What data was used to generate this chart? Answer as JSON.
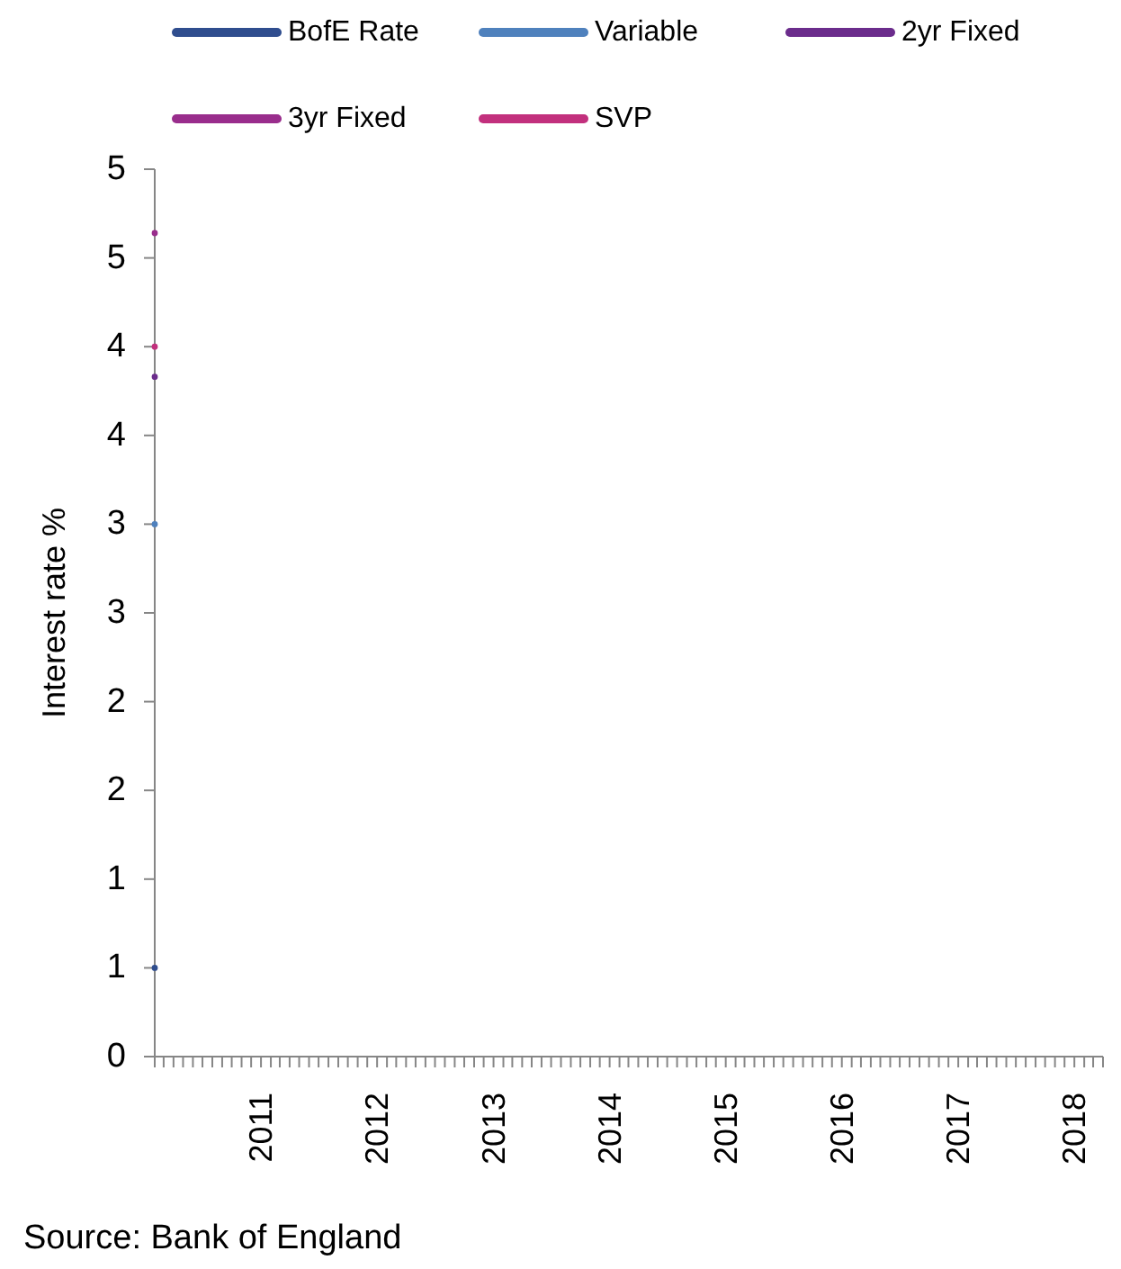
{
  "chart_data": {
    "type": "line",
    "ylabel": "Interest rate %",
    "annotations": [
      "Source: Bank of England"
    ],
    "legend": "top",
    "marker": "circle",
    "x": [
      "2010-02"
    ],
    "series": [
      {
        "name": "BofE Rate",
        "color": "#2f4d8e",
        "values": [
          0.5
        ]
      },
      {
        "name": "Variable",
        "color": "#4f81bd",
        "values": [
          3.0
        ]
      },
      {
        "name": "2yr Fixed",
        "color": "#6b2c8c",
        "values": [
          3.83
        ]
      },
      {
        "name": "3yr Fixed",
        "color": "#992d8c",
        "values": [
          4.64
        ]
      },
      {
        "name": "SVP",
        "color": "#c2307d",
        "values": [
          4.0
        ]
      }
    ],
    "xlim": [
      "2010-02",
      "2018-04"
    ],
    "xticks": [
      {
        "value": "2010-02",
        "label": null
      },
      {
        "value": "2010-03",
        "label": null
      },
      {
        "value": "2010-04",
        "label": null
      },
      {
        "value": "2010-05",
        "label": null
      },
      {
        "value": "2010-06",
        "label": null
      },
      {
        "value": "2010-07",
        "label": null
      },
      {
        "value": "2010-08",
        "label": null
      },
      {
        "value": "2010-09",
        "label": null
      },
      {
        "value": "2010-10",
        "label": null
      },
      {
        "value": "2010-11",
        "label": null
      },
      {
        "value": "2010-12",
        "label": null
      },
      "2011",
      {
        "value": "2011-02",
        "label": null
      },
      {
        "value": "2011-03",
        "label": null
      },
      {
        "value": "2011-04",
        "label": null
      },
      {
        "value": "2011-05",
        "label": null
      },
      {
        "value": "2011-06",
        "label": null
      },
      {
        "value": "2011-07",
        "label": null
      },
      {
        "value": "2011-08",
        "label": null
      },
      {
        "value": "2011-09",
        "label": null
      },
      {
        "value": "2011-10",
        "label": null
      },
      {
        "value": "2011-11",
        "label": null
      },
      {
        "value": "2011-12",
        "label": null
      },
      "2012",
      {
        "value": "2012-02",
        "label": null
      },
      {
        "value": "2012-03",
        "label": null
      },
      {
        "value": "2012-04",
        "label": null
      },
      {
        "value": "2012-05",
        "label": null
      },
      {
        "value": "2012-06",
        "label": null
      },
      {
        "value": "2012-07",
        "label": null
      },
      {
        "value": "2012-08",
        "label": null
      },
      {
        "value": "2012-09",
        "label": null
      },
      {
        "value": "2012-10",
        "label": null
      },
      {
        "value": "2012-11",
        "label": null
      },
      {
        "value": "2012-12",
        "label": null
      },
      "2013",
      {
        "value": "2013-02",
        "label": null
      },
      {
        "value": "2013-03",
        "label": null
      },
      {
        "value": "2013-04",
        "label": null
      },
      {
        "value": "2013-05",
        "label": null
      },
      {
        "value": "2013-06",
        "label": null
      },
      {
        "value": "2013-07",
        "label": null
      },
      {
        "value": "2013-08",
        "label": null
      },
      {
        "value": "2013-09",
        "label": null
      },
      {
        "value": "2013-10",
        "label": null
      },
      {
        "value": "2013-11",
        "label": null
      },
      {
        "value": "2013-12",
        "label": null
      },
      "2014",
      {
        "value": "2014-02",
        "label": null
      },
      {
        "value": "2014-03",
        "label": null
      },
      {
        "value": "2014-04",
        "label": null
      },
      {
        "value": "2014-05",
        "label": null
      },
      {
        "value": "2014-06",
        "label": null
      },
      {
        "value": "2014-07",
        "label": null
      },
      {
        "value": "2014-08",
        "label": null
      },
      {
        "value": "2014-09",
        "label": null
      },
      {
        "value": "2014-10",
        "label": null
      },
      {
        "value": "2014-11",
        "label": null
      },
      {
        "value": "2014-12",
        "label": null
      },
      "2015",
      {
        "value": "2015-02",
        "label": null
      },
      {
        "value": "2015-03",
        "label": null
      },
      {
        "value": "2015-04",
        "label": null
      },
      {
        "value": "2015-05",
        "label": null
      },
      {
        "value": "2015-06",
        "label": null
      },
      {
        "value": "2015-07",
        "label": null
      },
      {
        "value": "2015-08",
        "label": null
      },
      {
        "value": "2015-09",
        "label": null
      },
      {
        "value": "2015-10",
        "label": null
      },
      {
        "value": "2015-11",
        "label": null
      },
      {
        "value": "2015-12",
        "label": null
      },
      "2016",
      {
        "value": "2016-02",
        "label": null
      },
      {
        "value": "2016-03",
        "label": null
      },
      {
        "value": "2016-04",
        "label": null
      },
      {
        "value": "2016-05",
        "label": null
      },
      {
        "value": "2016-06",
        "label": null
      },
      {
        "value": "2016-07",
        "label": null
      },
      {
        "value": "2016-08",
        "label": null
      },
      {
        "value": "2016-09",
        "label": null
      },
      {
        "value": "2016-10",
        "label": null
      },
      {
        "value": "2016-11",
        "label": null
      },
      {
        "value": "2016-12",
        "label": null
      },
      "2017",
      {
        "value": "2017-02",
        "label": null
      },
      {
        "value": "2017-03",
        "label": null
      },
      {
        "value": "2017-04",
        "label": null
      },
      {
        "value": "2017-05",
        "label": null
      },
      {
        "value": "2017-06",
        "label": null
      },
      {
        "value": "2017-07",
        "label": null
      },
      {
        "value": "2017-08",
        "label": null
      },
      {
        "value": "2017-09",
        "label": null
      },
      {
        "value": "2017-10",
        "label": null
      },
      {
        "value": "2017-11",
        "label": null
      },
      {
        "value": "2017-12",
        "label": null
      },
      "2018",
      {
        "value": "2018-02",
        "label": null
      },
      {
        "value": "2018-03",
        "label": null
      },
      {
        "value": "2018-04",
        "label": null
      }
    ],
    "ylim": [
      0,
      5
    ],
    "yticks": [
      0,
      {
        "value": 0.5,
        "label": "1"
      },
      1,
      {
        "value": 1.5,
        "label": "2"
      },
      2,
      {
        "value": 2.5,
        "label": "3"
      },
      3,
      {
        "value": 3.5,
        "label": "4"
      },
      4,
      {
        "value": 4.5,
        "label": "5"
      },
      5
    ]
  }
}
